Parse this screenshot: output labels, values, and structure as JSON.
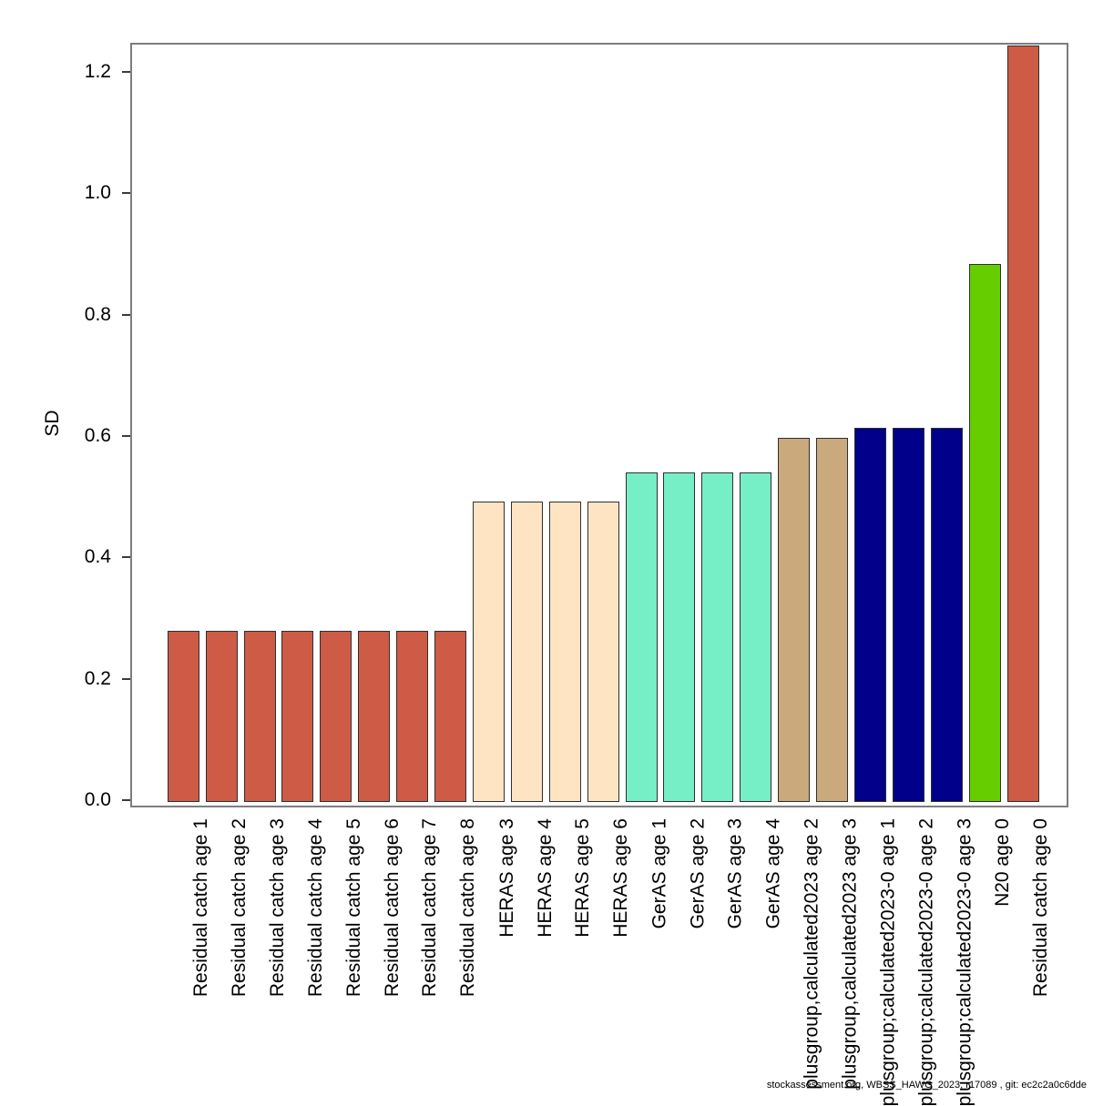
{
  "chart_data": {
    "type": "bar",
    "title": "",
    "xlabel": "",
    "ylabel": "SD",
    "ylim": [
      0,
      1.248
    ],
    "yticks": [
      0.0,
      0.2,
      0.4,
      0.6,
      0.8,
      1.0,
      1.2
    ],
    "ytick_labels": [
      "0.0",
      "0.2",
      "0.4",
      "0.6",
      "0.8",
      "1.0",
      "1.2"
    ],
    "grid": false,
    "legend": "none",
    "categories": [
      "Residual catch age 1",
      "Residual catch age 2",
      "Residual catch age 3",
      "Residual catch age 4",
      "Residual catch age 5",
      "Residual catch age 6",
      "Residual catch age 7",
      "Residual catch age 8",
      "HERAS age 3",
      "HERAS age 4",
      "HERAS age 5",
      "HERAS age 6",
      "GerAS age 1",
      "GerAS age 2",
      "GerAS age 3",
      "GerAS age 4",
      "plusgroup,calculated2023 age 2",
      "plusgroup,calculated2023 age 3",
      "plusgroup;calculated2023-0 age 1",
      "plusgroup;calculated2023-0 age 2",
      "plusgroup;calculated2023-0 age 3",
      "N20 age 0",
      "Residual catch age 0"
    ],
    "values": [
      0.282,
      0.282,
      0.282,
      0.282,
      0.282,
      0.282,
      0.282,
      0.282,
      0.495,
      0.495,
      0.495,
      0.495,
      0.543,
      0.543,
      0.543,
      0.543,
      0.6,
      0.6,
      0.617,
      0.617,
      0.617,
      0.887,
      1.247
    ],
    "bar_colors": [
      "#CD5B45",
      "#CD5B45",
      "#CD5B45",
      "#CD5B45",
      "#CD5B45",
      "#CD5B45",
      "#CD5B45",
      "#CD5B45",
      "#FFE4C4",
      "#FFE4C4",
      "#FFE4C4",
      "#FFE4C4",
      "#76EEC6",
      "#76EEC6",
      "#76EEC6",
      "#76EEC6",
      "#CAA97C",
      "#CAA97C",
      "#00008B",
      "#00008B",
      "#00008B",
      "#66CD00",
      "#CD5B45"
    ],
    "bar_border_color": "#2f2f2f"
  },
  "watermark": "stockassessment.org, WBSS_HAWG_2023, r17089 , git: ec2c2a0c6dde"
}
